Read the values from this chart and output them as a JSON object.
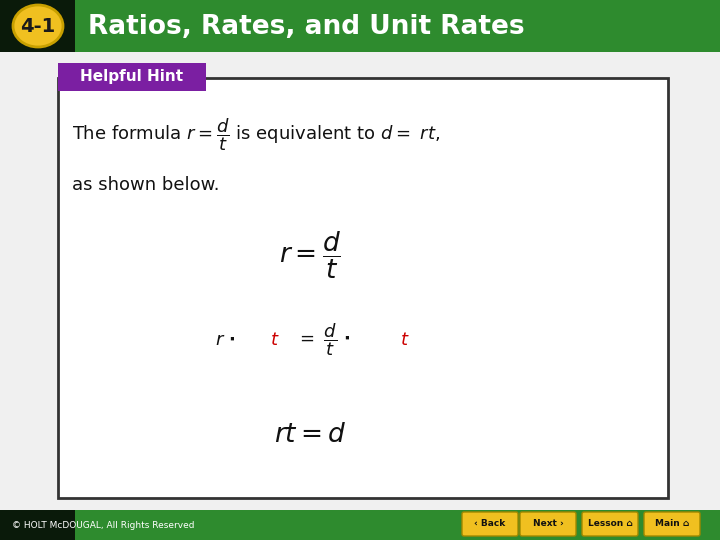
{
  "title_bg_color": "#2e8b2e",
  "title_bg_dark": "#0a1a0a",
  "title_text": "Ratios, Rates, and Unit Rates",
  "title_label": "4-1",
  "title_label_bg": "#f0c020",
  "title_label_border": "#c8a000",
  "title_text_color": "#ffffff",
  "helpful_hint_bg": "#7b1fa2",
  "helpful_hint_text": "Helpful Hint",
  "helpful_hint_text_color": "#ffffff",
  "box_bg": "#ffffff",
  "box_border": "#333333",
  "footer_bg_color": "#2e8b2e",
  "footer_bg_dark": "#0a1a0a",
  "footer_text": "© HOLT McDOUGAL, All Rights Reserved",
  "footer_text_color": "#ffffff",
  "button_color": "#f0c020",
  "button_border": "#a08800",
  "button_labels": [
    "Back",
    "Next",
    "Lesson",
    "Main"
  ],
  "content_text_color": "#111111",
  "red_color": "#cc0000",
  "slide_bg": "#f0f0f0"
}
